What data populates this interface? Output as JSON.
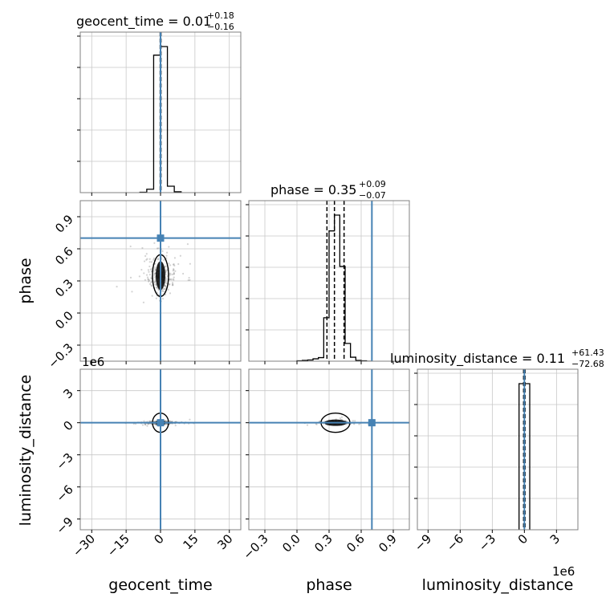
{
  "chart_data": {
    "type": "corner",
    "parameters": [
      "geocent_time",
      "phase",
      "luminosity_distance"
    ],
    "truths": {
      "geocent_time": 0.0,
      "phase": 0.7,
      "luminosity_distance": 0.0
    },
    "titles": [
      {
        "param": "geocent_time",
        "text": "geocent_time = 0.01",
        "plus": "+0.18",
        "minus": "−0.16"
      },
      {
        "param": "phase",
        "text": "phase = 0.35",
        "plus": "+0.09",
        "minus": "−0.07"
      },
      {
        "param": "luminosity_distance",
        "text": "luminosity_distance = 0.11",
        "plus": "+61.43",
        "minus": "−72.68"
      }
    ],
    "axis_labels": {
      "x": [
        "geocent_time",
        "phase",
        "luminosity_distance"
      ],
      "y": [
        "phase",
        "luminosity_distance"
      ]
    },
    "ranges": {
      "geocent_time": [
        -35,
        35
      ],
      "phase": [
        -0.45,
        1.05
      ],
      "luminosity_distance": [
        -10,
        5
      ]
    },
    "ticks": {
      "geocent_time": [
        "−30",
        "−15",
        "0",
        "15",
        "30"
      ],
      "phase": [
        "−0.3",
        "0.0",
        "0.3",
        "0.6",
        "0.9"
      ],
      "luminosity_distance": [
        "−9",
        "−6",
        "−3",
        "0",
        "3"
      ]
    },
    "tick_values": {
      "geocent_time": [
        -30,
        -15,
        0,
        15,
        30
      ],
      "phase": [
        -0.3,
        0.0,
        0.3,
        0.6,
        0.9
      ],
      "luminosity_distance": [
        -9,
        -6,
        -3,
        0,
        3
      ]
    },
    "offset_text": "1e6",
    "quantiles": {
      "geocent_time": [
        -0.15,
        0.01,
        0.19
      ],
      "phase": [
        0.28,
        0.35,
        0.44
      ],
      "luminosity_distance": [
        -0.0727,
        0.0001,
        0.0615
      ]
    },
    "histograms": {
      "geocent_time": {
        "edges": [
          -9,
          -6,
          -3,
          0,
          3,
          6,
          9
        ],
        "counts": [
          1,
          8,
          320,
          340,
          15,
          2
        ]
      },
      "phase": {
        "edges": [
          0.0,
          0.05,
          0.1,
          0.15,
          0.2,
          0.25,
          0.3,
          0.35,
          0.4,
          0.45,
          0.5,
          0.55,
          0.6,
          0.65,
          0.7
        ],
        "counts": [
          1,
          2,
          3,
          6,
          9,
          110,
          330,
          370,
          240,
          45,
          10,
          2,
          1,
          0
        ]
      },
      "luminosity_distance": {
        "edges": [
          -0.5,
          0.0,
          0.5
        ],
        "counts": [
          1,
          1
        ]
      }
    },
    "grid": true,
    "truth_color": "#4682b4",
    "hist_color": "#000000",
    "scatter_color": "#808080"
  }
}
